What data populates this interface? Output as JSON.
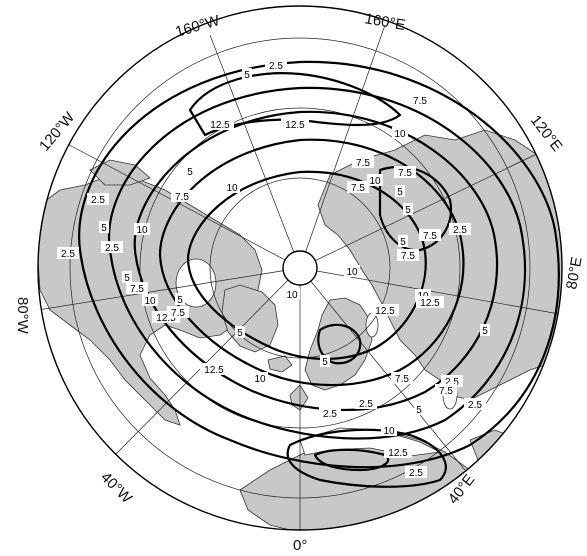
{
  "map": {
    "projection": "north-polar-stereographic",
    "colors": {
      "land": "#c8c8c8",
      "contour": "#000000",
      "grid": "#222222",
      "background": "#ffffff"
    },
    "meridian_labels": [
      {
        "text": "0°",
        "lon": 0
      },
      {
        "text": "40°W",
        "lon": -40
      },
      {
        "text": "80°W",
        "lon": -80
      },
      {
        "text": "120°W",
        "lon": -120
      },
      {
        "text": "160°W",
        "lon": -160
      },
      {
        "text": "160°E",
        "lon": 160
      },
      {
        "text": "120°E",
        "lon": 120
      },
      {
        "text": "80°E",
        "lon": 80
      },
      {
        "text": "40°E",
        "lon": 40
      }
    ],
    "contour_levels": [
      "2.5",
      "5",
      "7.5",
      "10",
      "12.5"
    ],
    "contour_labels": [
      "2.5",
      "5",
      "7.5",
      "12.5",
      "10",
      "12.5",
      "7.5",
      "10",
      "2.5",
      "5",
      "7.5",
      "2.5",
      "5",
      "10",
      "2.5",
      "5",
      "7.5",
      "10",
      "12.5",
      "7.5",
      "5",
      "12.5",
      "10",
      "10",
      "5",
      "7.5",
      "12.5",
      "10",
      "5",
      "7.5",
      "10",
      "5",
      "7.5",
      "2.5",
      "2.5",
      "7.5",
      "5",
      "2.5",
      "2.5",
      "10",
      "5",
      "7.5",
      "12.5",
      "2.5",
      "7.5",
      "5",
      "10",
      "12.5",
      "5",
      "2.5"
    ]
  }
}
